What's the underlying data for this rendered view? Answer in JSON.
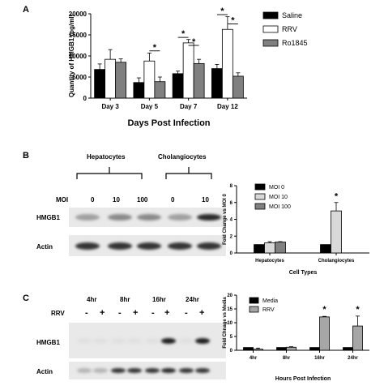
{
  "panels": {
    "a": {
      "letter": "A"
    },
    "b": {
      "letter": "B"
    },
    "c": {
      "letter": "C"
    }
  },
  "chart_data": [
    {
      "type": "bar",
      "panel": "A",
      "ylabel": "Quantity of HMGB1 (pg/ml)",
      "xlabel": "Days Post Infection",
      "ylim": [
        0,
        20000
      ],
      "yticks": [
        "0",
        "5000",
        "10000",
        "15000",
        "20000"
      ],
      "categories": [
        "Day 3",
        "Day 5",
        "Day 7",
        "Day 12"
      ],
      "series": [
        {
          "name": "Saline",
          "color": "#000000",
          "values": [
            6800,
            3700,
            5800,
            7000
          ],
          "errors": [
            1300,
            1100,
            600,
            1000
          ]
        },
        {
          "name": "RRV",
          "color": "#ffffff",
          "values": [
            9200,
            8800,
            13100,
            16300
          ],
          "errors": [
            2300,
            1900,
            800,
            3000
          ]
        },
        {
          "name": "Ro1845",
          "color": "#808080",
          "values": [
            8500,
            3900,
            8200,
            5200
          ],
          "errors": [
            800,
            1100,
            1000,
            800
          ]
        }
      ],
      "annotations": [
        "*",
        "*",
        "*",
        "*",
        "*"
      ]
    },
    {
      "type": "bar",
      "panel": "B",
      "ylabel": "Fold Change vs MOI 0",
      "xlabel": "Cell Types",
      "ylim": [
        0,
        8
      ],
      "yticks": [
        "0",
        "2",
        "4",
        "6",
        "8"
      ],
      "categories": [
        "Hepatocytes",
        "Cholangiocytes"
      ],
      "series": [
        {
          "name": "MOI 0",
          "color": "#000000",
          "values": [
            1.0,
            1.0
          ],
          "errors": [
            0,
            0
          ]
        },
        {
          "name": "MOI 10",
          "color": "#d9d9d9",
          "values": [
            1.2,
            5.0
          ],
          "errors": [
            0.15,
            1.0
          ]
        },
        {
          "name": "MOI 100",
          "color": "#808080",
          "values": [
            1.3,
            null
          ],
          "errors": [
            0.05,
            0
          ]
        }
      ],
      "annotations": [
        "*"
      ]
    },
    {
      "type": "bar",
      "panel": "C",
      "ylabel": "Fold Chnage vs Media",
      "xlabel": "Hours Post Infection",
      "ylim": [
        0,
        20
      ],
      "yticks": [
        "0",
        "5",
        "10",
        "15",
        "20"
      ],
      "categories": [
        "4hr",
        "8hr",
        "16hr",
        "24hr"
      ],
      "series": [
        {
          "name": "Media",
          "color": "#000000",
          "values": [
            1.0,
            1.0,
            1.0,
            1.0
          ],
          "errors": [
            0,
            0,
            0,
            0
          ]
        },
        {
          "name": "RRV",
          "color": "#a6a6a6",
          "values": [
            0.4,
            1.1,
            12.1,
            8.8
          ],
          "errors": [
            0.4,
            0.2,
            0.2,
            3.6
          ]
        }
      ],
      "annotations": [
        "*",
        "*"
      ]
    }
  ],
  "blot_b": {
    "group1": "Hepatocytes",
    "group2": "Cholangiocytes",
    "moi_label": "MOI",
    "moi_values": [
      "0",
      "10",
      "100",
      "0",
      "10"
    ],
    "rows": [
      "HMGB1",
      "Actin"
    ],
    "hmgb1_intensity": [
      0.35,
      0.45,
      0.45,
      0.35,
      0.9
    ],
    "actin_intensity": [
      0.85,
      0.85,
      0.85,
      0.85,
      0.85
    ]
  },
  "blot_c": {
    "times": [
      "4hr",
      "8hr",
      "16hr",
      "24hr"
    ],
    "rrv_label": "RRV",
    "signs": [
      "-",
      "+",
      "-",
      "+",
      "-",
      "+",
      "-",
      "+"
    ],
    "rows": [
      "HMGB1",
      "Actin"
    ],
    "hmgb1_intensity": [
      0.05,
      0.05,
      0.05,
      0.05,
      0.05,
      0.95,
      0.05,
      0.95
    ],
    "actin_intensity": [
      0.25,
      0.25,
      0.85,
      0.85,
      0.85,
      0.9,
      0.85,
      0.85
    ]
  }
}
